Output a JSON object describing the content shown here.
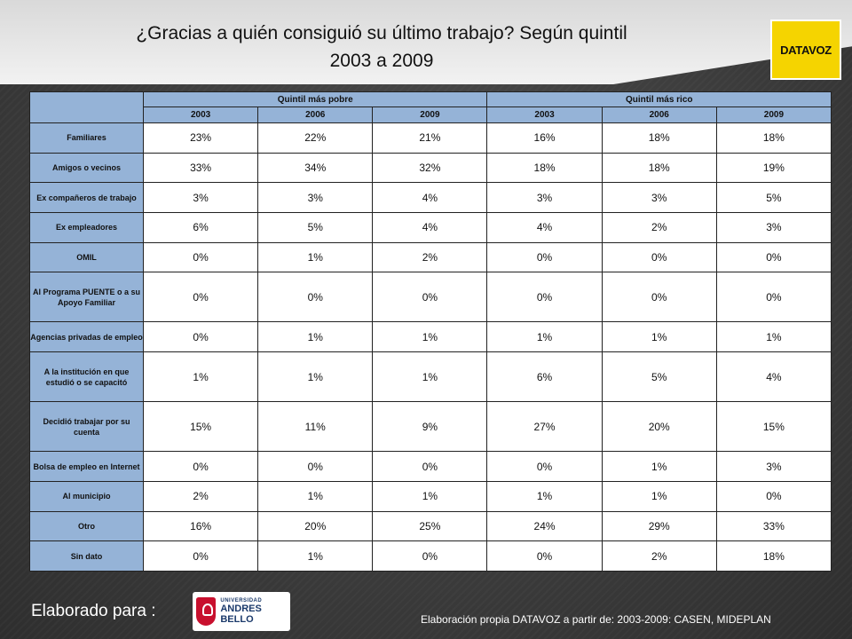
{
  "title": {
    "line1": "¿Gracias a quién consiguió su último trabajo? Según quintil",
    "line2": "2003 a 2009"
  },
  "logo_text": "DATAVOZ",
  "table": {
    "groups": [
      "Quintil más pobre",
      "Quintil más rico"
    ],
    "years": [
      "2003",
      "2006",
      "2009",
      "2003",
      "2006",
      "2009"
    ],
    "rows": [
      {
        "label": "Familiares",
        "values": [
          "23%",
          "22%",
          "21%",
          "16%",
          "18%",
          "18%"
        ]
      },
      {
        "label": "Amigos o vecinos",
        "values": [
          "33%",
          "34%",
          "32%",
          "18%",
          "18%",
          "19%"
        ]
      },
      {
        "label": "Ex compañeros de trabajo",
        "values": [
          "3%",
          "3%",
          "4%",
          "3%",
          "3%",
          "5%"
        ]
      },
      {
        "label": "Ex empleadores",
        "values": [
          "6%",
          "5%",
          "4%",
          "4%",
          "2%",
          "3%"
        ]
      },
      {
        "label": "OMIL",
        "values": [
          "0%",
          "1%",
          "2%",
          "0%",
          "0%",
          "0%"
        ]
      },
      {
        "label": "Al Programa PUENTE o a su Apoyo Familiar",
        "values": [
          "0%",
          "0%",
          "0%",
          "0%",
          "0%",
          "0%"
        ]
      },
      {
        "label": "Agencias privadas de empleo",
        "values": [
          "0%",
          "1%",
          "1%",
          "1%",
          "1%",
          "1%"
        ]
      },
      {
        "label": "A la institución en que estudió o se capacitó",
        "values": [
          "1%",
          "1%",
          "1%",
          "6%",
          "5%",
          "4%"
        ]
      },
      {
        "label": "Decidió trabajar por su cuenta",
        "values": [
          "15%",
          "11%",
          "9%",
          "27%",
          "20%",
          "15%"
        ]
      },
      {
        "label": "Bolsa de empleo en Internet",
        "values": [
          "0%",
          "0%",
          "0%",
          "0%",
          "1%",
          "3%"
        ]
      },
      {
        "label": "Al municipio",
        "values": [
          "2%",
          "1%",
          "1%",
          "1%",
          "1%",
          "0%"
        ]
      },
      {
        "label": "Otro",
        "values": [
          "16%",
          "20%",
          "25%",
          "24%",
          "29%",
          "33%"
        ]
      },
      {
        "label": "Sin dato",
        "values": [
          "0%",
          "1%",
          "0%",
          "0%",
          "2%",
          "18%"
        ]
      }
    ]
  },
  "footer": {
    "left": "Elaborado para :",
    "unab_line1": "UNIVERSIDAD",
    "unab_line2": "ANDRES BELLO",
    "right": "Elaboración propia DATAVOZ a partir de: 2003-2009: CASEN, MIDEPLAN"
  }
}
